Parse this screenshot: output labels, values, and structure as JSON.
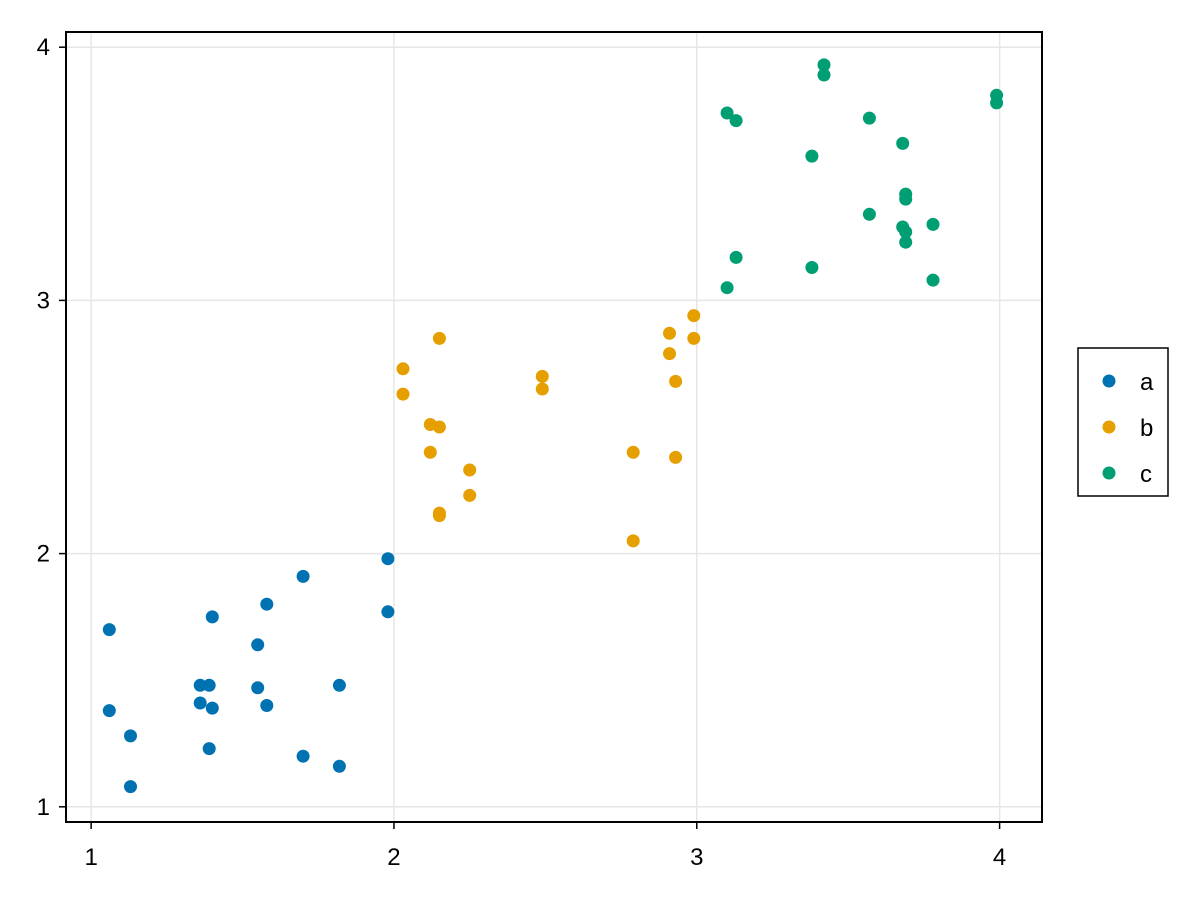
{
  "chart_data": {
    "type": "scatter",
    "title": "",
    "xlabel": "",
    "ylabel": "",
    "xlim": [
      0.917,
      4.14
    ],
    "ylim": [
      0.94,
      4.06
    ],
    "xticks": [
      1,
      2,
      3,
      4
    ],
    "yticks": [
      1,
      2,
      3,
      4
    ],
    "grid": true,
    "legend": "right",
    "series": [
      {
        "name": "a",
        "color": "#0072b2",
        "points": [
          [
            1.06,
            1.7
          ],
          [
            1.06,
            1.38
          ],
          [
            1.13,
            1.28
          ],
          [
            1.13,
            1.08
          ],
          [
            1.36,
            1.48
          ],
          [
            1.36,
            1.41
          ],
          [
            1.39,
            1.48
          ],
          [
            1.39,
            1.23
          ],
          [
            1.4,
            1.75
          ],
          [
            1.4,
            1.39
          ],
          [
            1.55,
            1.64
          ],
          [
            1.55,
            1.47
          ],
          [
            1.58,
            1.8
          ],
          [
            1.58,
            1.4
          ],
          [
            1.7,
            1.91
          ],
          [
            1.7,
            1.2
          ],
          [
            1.82,
            1.48
          ],
          [
            1.82,
            1.16
          ],
          [
            1.98,
            1.98
          ],
          [
            1.98,
            1.77
          ]
        ]
      },
      {
        "name": "b",
        "color": "#e69f00",
        "points": [
          [
            2.03,
            2.73
          ],
          [
            2.03,
            2.63
          ],
          [
            2.12,
            2.51
          ],
          [
            2.12,
            2.4
          ],
          [
            2.15,
            2.85
          ],
          [
            2.15,
            2.5
          ],
          [
            2.15,
            2.16
          ],
          [
            2.15,
            2.15
          ],
          [
            2.25,
            2.33
          ],
          [
            2.25,
            2.23
          ],
          [
            2.49,
            2.7
          ],
          [
            2.49,
            2.65
          ],
          [
            2.79,
            2.4
          ],
          [
            2.79,
            2.05
          ],
          [
            2.91,
            2.87
          ],
          [
            2.91,
            2.79
          ],
          [
            2.93,
            2.68
          ],
          [
            2.93,
            2.38
          ],
          [
            2.99,
            2.94
          ],
          [
            2.99,
            2.85
          ]
        ]
      },
      {
        "name": "c",
        "color": "#009e73",
        "points": [
          [
            3.1,
            3.74
          ],
          [
            3.1,
            3.05
          ],
          [
            3.13,
            3.71
          ],
          [
            3.13,
            3.17
          ],
          [
            3.38,
            3.57
          ],
          [
            3.38,
            3.13
          ],
          [
            3.42,
            3.93
          ],
          [
            3.42,
            3.89
          ],
          [
            3.57,
            3.72
          ],
          [
            3.57,
            3.34
          ],
          [
            3.68,
            3.62
          ],
          [
            3.68,
            3.29
          ],
          [
            3.69,
            3.42
          ],
          [
            3.69,
            3.4
          ],
          [
            3.69,
            3.27
          ],
          [
            3.69,
            3.23
          ],
          [
            3.78,
            3.3
          ],
          [
            3.78,
            3.08
          ],
          [
            3.99,
            3.81
          ],
          [
            3.99,
            3.78
          ]
        ]
      }
    ]
  },
  "colors": {
    "grid": "#e6e6e6",
    "frame": "#000000"
  }
}
